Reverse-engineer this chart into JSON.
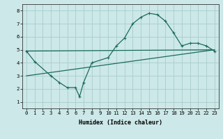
{
  "xlabel": "Humidex (Indice chaleur)",
  "bg_color": "#cce8e8",
  "grid_color": "#aacccc",
  "line_color": "#1a6b5a",
  "xlim": [
    -0.5,
    23.5
  ],
  "ylim": [
    0.5,
    8.5
  ],
  "xticks": [
    0,
    1,
    2,
    3,
    4,
    5,
    6,
    7,
    8,
    9,
    10,
    11,
    12,
    13,
    14,
    15,
    16,
    17,
    18,
    19,
    20,
    21,
    22,
    23
  ],
  "yticks": [
    1,
    2,
    3,
    4,
    5,
    6,
    7,
    8
  ],
  "curve1_x": [
    0,
    1,
    3,
    4,
    5,
    6,
    6.5,
    7,
    8,
    10,
    11,
    12,
    13,
    14,
    15,
    16,
    17,
    18,
    19,
    20,
    21,
    22,
    23
  ],
  "curve1_y": [
    4.9,
    4.1,
    3.0,
    2.5,
    2.1,
    2.1,
    1.4,
    2.5,
    4.0,
    4.4,
    5.3,
    5.9,
    7.0,
    7.5,
    7.8,
    7.7,
    7.2,
    6.3,
    5.3,
    5.5,
    5.5,
    5.3,
    4.9
  ],
  "line1_x": [
    0,
    23
  ],
  "line1_y": [
    4.9,
    5.0
  ],
  "line2_x": [
    0,
    23
  ],
  "line2_y": [
    3.0,
    5.0
  ],
  "xlabel_fontsize": 6.0,
  "tick_fontsize": 5.2
}
